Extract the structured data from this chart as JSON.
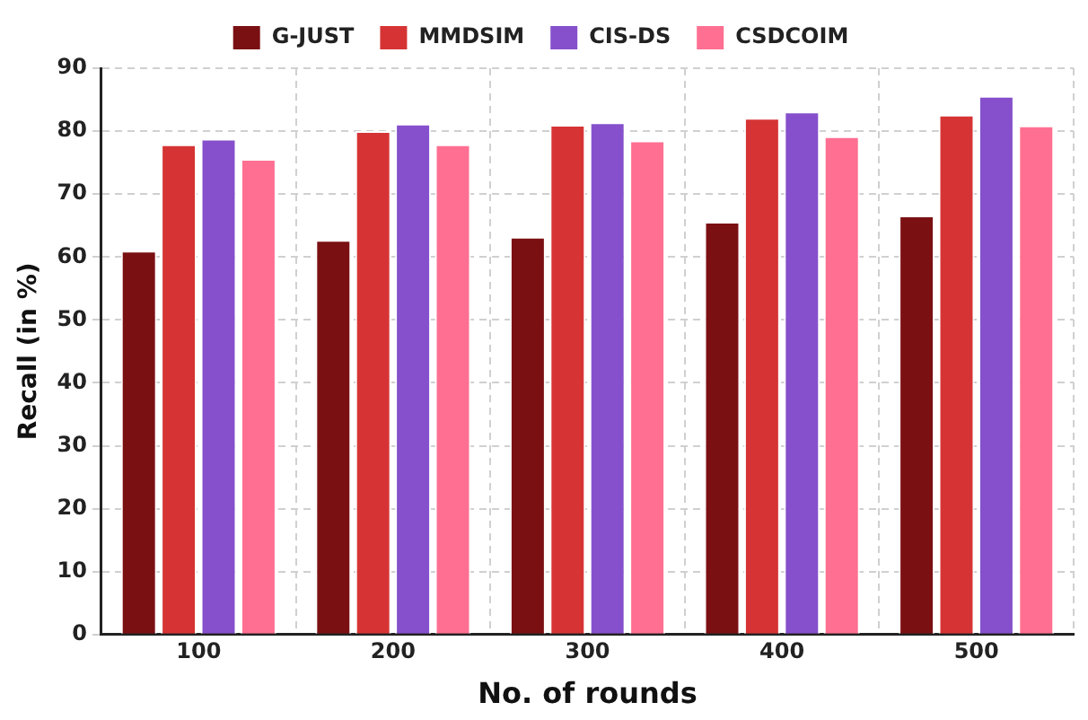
{
  "chart_data": {
    "type": "bar",
    "xlabel": "No. of rounds",
    "ylabel": "Recall (in %)",
    "categories": [
      "100",
      "200",
      "300",
      "400",
      "500"
    ],
    "series": [
      {
        "name": "G-JUST",
        "color": "#7b1013",
        "values": [
          61,
          62.7,
          63.2,
          65.6,
          66.6
        ]
      },
      {
        "name": "MMDSIM",
        "color": "#d63434",
        "values": [
          77.9,
          80,
          81,
          82.1,
          82.6
        ]
      },
      {
        "name": "CIS-DS",
        "color": "#8650cc",
        "values": [
          78.8,
          81.2,
          81.4,
          83.1,
          85.6
        ]
      },
      {
        "name": "CSDCOIM",
        "color": "#ff6f91",
        "values": [
          75.6,
          77.9,
          78.5,
          79.2,
          80.9
        ]
      }
    ],
    "ylim": [
      0,
      90
    ],
    "yticks": [
      0,
      10,
      20,
      30,
      40,
      50,
      60,
      70,
      80,
      90
    ],
    "grid": true,
    "legend": "top"
  }
}
